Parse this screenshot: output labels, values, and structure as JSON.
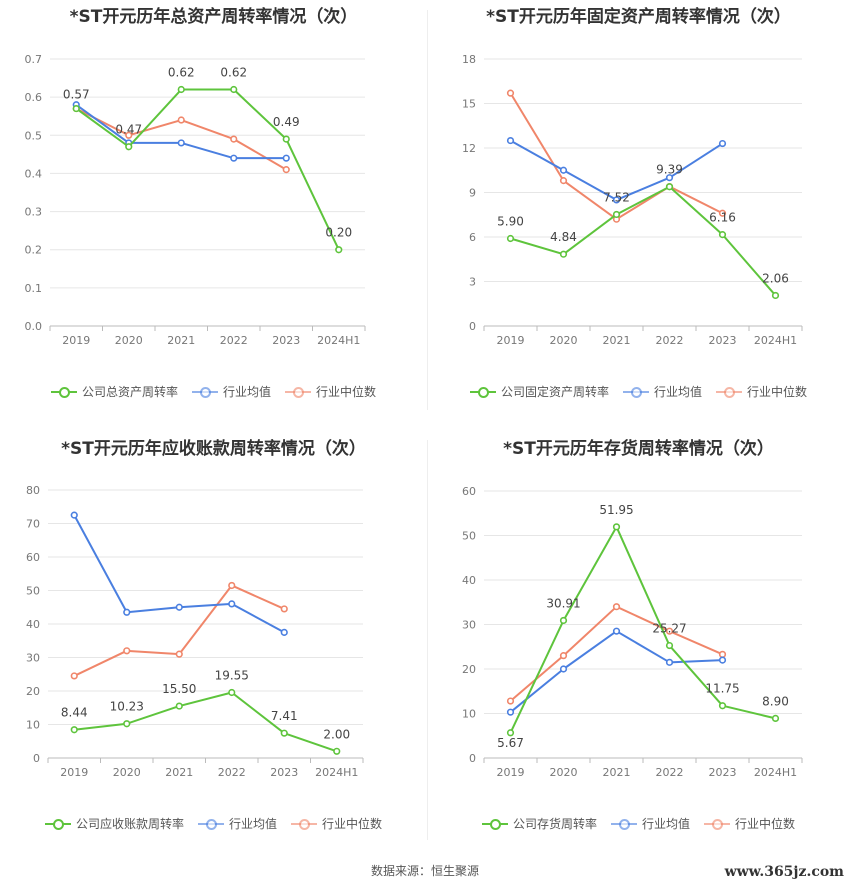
{
  "footer": {
    "source": "数据来源：恒生聚源",
    "watermark": "www.365jz.com"
  },
  "colors": {
    "company": "#5ec43c",
    "industry_avg": "#4a7fe0",
    "industry_median": "#f0866a"
  },
  "chart_data": [
    {
      "type": "line",
      "title": "*ST开元历年总资产周转率情况（次）",
      "categories": [
        "2019",
        "2020",
        "2021",
        "2022",
        "2023",
        "2024H1"
      ],
      "ylim": [
        0,
        0.7
      ],
      "yticks": [
        0,
        0.1,
        0.2,
        0.3,
        0.4,
        0.5,
        0.6,
        0.7
      ],
      "grid": true,
      "legend_position": "bottom",
      "series": [
        {
          "name": "公司总资产周转率",
          "color_key": "company",
          "values": [
            0.57,
            0.47,
            0.62,
            0.62,
            0.49,
            0.2
          ],
          "labels": [
            "0.57",
            "0.47",
            "0.62",
            "0.62",
            "0.49",
            "0.20"
          ]
        },
        {
          "name": "行业均值",
          "color_key": "industry_avg",
          "values": [
            0.58,
            0.48,
            0.48,
            0.44,
            0.44,
            null
          ]
        },
        {
          "name": "行业中位数",
          "color_key": "industry_median",
          "values": [
            0.57,
            0.5,
            0.54,
            0.49,
            0.41,
            null
          ]
        }
      ]
    },
    {
      "type": "line",
      "title": "*ST开元历年固定资产周转率情况（次）",
      "categories": [
        "2019",
        "2020",
        "2021",
        "2022",
        "2023",
        "2024H1"
      ],
      "ylim": [
        0,
        18
      ],
      "yticks": [
        0,
        3,
        6,
        9,
        12,
        15,
        18
      ],
      "grid": true,
      "legend_position": "bottom",
      "series": [
        {
          "name": "公司固定资产周转率",
          "color_key": "company",
          "values": [
            5.9,
            4.84,
            7.52,
            9.39,
            6.16,
            2.06
          ],
          "labels": [
            "5.90",
            "4.84",
            "7.52",
            "9.39",
            "6.16",
            "2.06"
          ]
        },
        {
          "name": "行业均值",
          "color_key": "industry_avg",
          "values": [
            12.5,
            10.5,
            8.5,
            10.0,
            12.3,
            null
          ]
        },
        {
          "name": "行业中位数",
          "color_key": "industry_median",
          "values": [
            15.7,
            9.8,
            7.2,
            9.4,
            7.6,
            null
          ]
        }
      ]
    },
    {
      "type": "line",
      "title": "*ST开元历年应收账款周转率情况（次）",
      "categories": [
        "2019",
        "2020",
        "2021",
        "2022",
        "2023",
        "2024H1"
      ],
      "ylim": [
        0,
        80
      ],
      "yticks": [
        0,
        10,
        20,
        30,
        40,
        50,
        60,
        70,
        80
      ],
      "grid": true,
      "legend_position": "bottom",
      "series": [
        {
          "name": "公司应收账款周转率",
          "color_key": "company",
          "values": [
            8.44,
            10.23,
            15.5,
            19.55,
            7.41,
            2.0
          ],
          "labels": [
            "8.44",
            "10.23",
            "15.50",
            "19.55",
            "7.41",
            "2.00"
          ]
        },
        {
          "name": "行业均值",
          "color_key": "industry_avg",
          "values": [
            72.5,
            43.5,
            45.0,
            46.0,
            37.5,
            null
          ]
        },
        {
          "name": "行业中位数",
          "color_key": "industry_median",
          "values": [
            24.5,
            32.0,
            31.0,
            51.5,
            44.5,
            null
          ]
        }
      ]
    },
    {
      "type": "line",
      "title": "*ST开元历年存货周转率情况（次）",
      "categories": [
        "2019",
        "2020",
        "2021",
        "2022",
        "2023",
        "2024H1"
      ],
      "ylim": [
        0,
        60
      ],
      "yticks": [
        0,
        10,
        20,
        30,
        40,
        50,
        60
      ],
      "grid": true,
      "legend_position": "bottom",
      "series": [
        {
          "name": "公司存货周转率",
          "color_key": "company",
          "values": [
            5.67,
            30.91,
            51.95,
            25.27,
            11.75,
            8.9
          ],
          "labels": [
            "5.67",
            "30.91",
            "51.95",
            "25.27",
            "11.75",
            "8.90"
          ]
        },
        {
          "name": "行业均值",
          "color_key": "industry_avg",
          "values": [
            10.3,
            20.0,
            28.5,
            21.5,
            22.0,
            null
          ]
        },
        {
          "name": "行业中位数",
          "color_key": "industry_median",
          "values": [
            12.8,
            23.0,
            34.0,
            28.5,
            23.3,
            null
          ]
        }
      ]
    }
  ]
}
